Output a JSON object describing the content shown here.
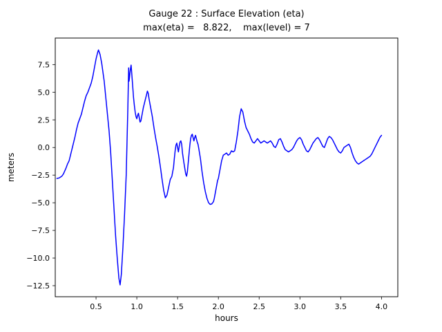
{
  "window": {
    "background": "#ffffff"
  },
  "chart_data": {
    "type": "line",
    "title_line1": "Gauge 22 : Surface Elevation (eta)",
    "title_line2": "max(eta) =   8.822,    max(level) = 7",
    "xlabel": "hours",
    "ylabel": "meters",
    "xlim": [
      0.0,
      4.2
    ],
    "ylim": [
      -13.5,
      9.9
    ],
    "xticks": [
      0.5,
      1.0,
      1.5,
      2.0,
      2.5,
      3.0,
      3.5,
      4.0
    ],
    "yticks": [
      -12.5,
      -10.0,
      -7.5,
      -5.0,
      -2.5,
      0.0,
      2.5,
      5.0,
      7.5
    ],
    "grid": false,
    "legend": null,
    "max_eta": 8.822,
    "max_level": 7,
    "series": [
      {
        "name": "eta",
        "color": "#0000ff",
        "points": [
          [
            0.02,
            -2.8
          ],
          [
            0.05,
            -2.75
          ],
          [
            0.08,
            -2.6
          ],
          [
            0.1,
            -2.4
          ],
          [
            0.13,
            -1.9
          ],
          [
            0.15,
            -1.5
          ],
          [
            0.17,
            -1.2
          ],
          [
            0.2,
            -0.3
          ],
          [
            0.22,
            0.3
          ],
          [
            0.24,
            0.9
          ],
          [
            0.26,
            1.6
          ],
          [
            0.28,
            2.2
          ],
          [
            0.3,
            2.6
          ],
          [
            0.32,
            3.0
          ],
          [
            0.34,
            3.6
          ],
          [
            0.36,
            4.2
          ],
          [
            0.38,
            4.7
          ],
          [
            0.4,
            5.0
          ],
          [
            0.42,
            5.4
          ],
          [
            0.44,
            5.8
          ],
          [
            0.46,
            6.4
          ],
          [
            0.48,
            7.2
          ],
          [
            0.5,
            8.0
          ],
          [
            0.52,
            8.6
          ],
          [
            0.53,
            8.822
          ],
          [
            0.55,
            8.4
          ],
          [
            0.57,
            7.6
          ],
          [
            0.6,
            6.0
          ],
          [
            0.62,
            4.5
          ],
          [
            0.64,
            3.0
          ],
          [
            0.66,
            1.5
          ],
          [
            0.68,
            -0.5
          ],
          [
            0.7,
            -3.0
          ],
          [
            0.72,
            -5.5
          ],
          [
            0.74,
            -8.0
          ],
          [
            0.76,
            -10.0
          ],
          [
            0.78,
            -11.8
          ],
          [
            0.795,
            -12.43
          ],
          [
            0.81,
            -11.5
          ],
          [
            0.83,
            -9.0
          ],
          [
            0.85,
            -6.0
          ],
          [
            0.87,
            -2.5
          ],
          [
            0.88,
            0.5
          ],
          [
            0.89,
            3.5
          ],
          [
            0.9,
            7.2
          ],
          [
            0.905,
            6.0
          ],
          [
            0.91,
            6.3
          ],
          [
            0.92,
            7.0
          ],
          [
            0.93,
            7.45
          ],
          [
            0.94,
            6.5
          ],
          [
            0.95,
            5.5
          ],
          [
            0.96,
            4.5
          ],
          [
            0.97,
            3.8
          ],
          [
            0.98,
            3.2
          ],
          [
            0.99,
            2.8
          ],
          [
            1.0,
            2.6
          ],
          [
            1.01,
            2.9
          ],
          [
            1.02,
            3.1
          ],
          [
            1.03,
            2.7
          ],
          [
            1.04,
            2.3
          ],
          [
            1.05,
            2.4
          ],
          [
            1.06,
            2.8
          ],
          [
            1.07,
            3.2
          ],
          [
            1.08,
            3.6
          ],
          [
            1.1,
            4.2
          ],
          [
            1.12,
            4.8
          ],
          [
            1.13,
            5.1
          ],
          [
            1.14,
            4.9
          ],
          [
            1.15,
            4.4
          ],
          [
            1.17,
            3.6
          ],
          [
            1.19,
            2.8
          ],
          [
            1.21,
            1.8
          ],
          [
            1.23,
            0.9
          ],
          [
            1.25,
            0.1
          ],
          [
            1.27,
            -0.8
          ],
          [
            1.29,
            -1.8
          ],
          [
            1.31,
            -2.9
          ],
          [
            1.33,
            -3.9
          ],
          [
            1.35,
            -4.55
          ],
          [
            1.37,
            -4.3
          ],
          [
            1.39,
            -3.6
          ],
          [
            1.41,
            -2.9
          ],
          [
            1.43,
            -2.6
          ],
          [
            1.45,
            -1.8
          ],
          [
            1.46,
            -1.0
          ],
          [
            1.47,
            -0.3
          ],
          [
            1.48,
            0.2
          ],
          [
            1.49,
            0.4
          ],
          [
            1.5,
            0.0
          ],
          [
            1.51,
            -0.4
          ],
          [
            1.52,
            0.1
          ],
          [
            1.53,
            0.5
          ],
          [
            1.54,
            0.6
          ],
          [
            1.55,
            0.3
          ],
          [
            1.56,
            -0.5
          ],
          [
            1.58,
            -1.5
          ],
          [
            1.6,
            -2.4
          ],
          [
            1.61,
            -2.6
          ],
          [
            1.62,
            -2.2
          ],
          [
            1.63,
            -1.4
          ],
          [
            1.64,
            -0.6
          ],
          [
            1.65,
            0.2
          ],
          [
            1.66,
            0.8
          ],
          [
            1.67,
            1.1
          ],
          [
            1.68,
            1.2
          ],
          [
            1.69,
            0.9
          ],
          [
            1.7,
            0.6
          ],
          [
            1.71,
            0.9
          ],
          [
            1.72,
            1.1
          ],
          [
            1.73,
            0.8
          ],
          [
            1.74,
            0.5
          ],
          [
            1.75,
            0.3
          ],
          [
            1.76,
            -0.1
          ],
          [
            1.78,
            -1.0
          ],
          [
            1.8,
            -2.2
          ],
          [
            1.82,
            -3.2
          ],
          [
            1.84,
            -4.0
          ],
          [
            1.86,
            -4.6
          ],
          [
            1.88,
            -5.0
          ],
          [
            1.9,
            -5.15
          ],
          [
            1.92,
            -5.1
          ],
          [
            1.94,
            -4.9
          ],
          [
            1.95,
            -4.6
          ],
          [
            1.97,
            -3.8
          ],
          [
            1.99,
            -3.0
          ],
          [
            2.0,
            -2.8
          ],
          [
            2.02,
            -2.0
          ],
          [
            2.04,
            -1.2
          ],
          [
            2.06,
            -0.7
          ],
          [
            2.08,
            -0.6
          ],
          [
            2.1,
            -0.5
          ],
          [
            2.12,
            -0.7
          ],
          [
            2.14,
            -0.6
          ],
          [
            2.16,
            -0.3
          ],
          [
            2.18,
            -0.4
          ],
          [
            2.2,
            -0.3
          ],
          [
            2.22,
            0.5
          ],
          [
            2.24,
            1.5
          ],
          [
            2.26,
            2.8
          ],
          [
            2.28,
            3.5
          ],
          [
            2.3,
            3.2
          ],
          [
            2.32,
            2.4
          ],
          [
            2.34,
            1.8
          ],
          [
            2.36,
            1.5
          ],
          [
            2.38,
            1.2
          ],
          [
            2.4,
            0.8
          ],
          [
            2.42,
            0.5
          ],
          [
            2.44,
            0.4
          ],
          [
            2.46,
            0.6
          ],
          [
            2.48,
            0.8
          ],
          [
            2.5,
            0.6
          ],
          [
            2.52,
            0.4
          ],
          [
            2.54,
            0.5
          ],
          [
            2.56,
            0.6
          ],
          [
            2.58,
            0.5
          ],
          [
            2.6,
            0.4
          ],
          [
            2.62,
            0.5
          ],
          [
            2.64,
            0.6
          ],
          [
            2.66,
            0.4
          ],
          [
            2.68,
            0.1
          ],
          [
            2.7,
            0.0
          ],
          [
            2.72,
            0.3
          ],
          [
            2.74,
            0.7
          ],
          [
            2.76,
            0.8
          ],
          [
            2.78,
            0.5
          ],
          [
            2.8,
            0.1
          ],
          [
            2.82,
            -0.2
          ],
          [
            2.84,
            -0.3
          ],
          [
            2.86,
            -0.4
          ],
          [
            2.88,
            -0.3
          ],
          [
            2.9,
            -0.2
          ],
          [
            2.92,
            0.0
          ],
          [
            2.94,
            0.3
          ],
          [
            2.96,
            0.6
          ],
          [
            2.98,
            0.8
          ],
          [
            3.0,
            0.9
          ],
          [
            3.02,
            0.7
          ],
          [
            3.04,
            0.3
          ],
          [
            3.06,
            0.0
          ],
          [
            3.08,
            -0.3
          ],
          [
            3.1,
            -0.4
          ],
          [
            3.12,
            -0.2
          ],
          [
            3.14,
            0.1
          ],
          [
            3.16,
            0.4
          ],
          [
            3.18,
            0.6
          ],
          [
            3.2,
            0.8
          ],
          [
            3.22,
            0.9
          ],
          [
            3.24,
            0.7
          ],
          [
            3.26,
            0.4
          ],
          [
            3.28,
            0.1
          ],
          [
            3.3,
            0.0
          ],
          [
            3.32,
            0.4
          ],
          [
            3.34,
            0.8
          ],
          [
            3.36,
            1.0
          ],
          [
            3.38,
            0.9
          ],
          [
            3.4,
            0.7
          ],
          [
            3.42,
            0.4
          ],
          [
            3.44,
            0.1
          ],
          [
            3.46,
            -0.2
          ],
          [
            3.48,
            -0.4
          ],
          [
            3.5,
            -0.5
          ],
          [
            3.52,
            -0.3
          ],
          [
            3.54,
            0.0
          ],
          [
            3.56,
            0.1
          ],
          [
            3.58,
            0.2
          ],
          [
            3.6,
            0.3
          ],
          [
            3.62,
            0.0
          ],
          [
            3.64,
            -0.5
          ],
          [
            3.66,
            -0.9
          ],
          [
            3.68,
            -1.2
          ],
          [
            3.7,
            -1.4
          ],
          [
            3.72,
            -1.5
          ],
          [
            3.74,
            -1.4
          ],
          [
            3.76,
            -1.3
          ],
          [
            3.78,
            -1.2
          ],
          [
            3.8,
            -1.1
          ],
          [
            3.82,
            -1.0
          ],
          [
            3.84,
            -0.9
          ],
          [
            3.86,
            -0.8
          ],
          [
            3.88,
            -0.6
          ],
          [
            3.9,
            -0.3
          ],
          [
            3.92,
            0.0
          ],
          [
            3.94,
            0.3
          ],
          [
            3.96,
            0.6
          ],
          [
            3.98,
            0.9
          ],
          [
            4.0,
            1.1
          ]
        ]
      }
    ]
  }
}
